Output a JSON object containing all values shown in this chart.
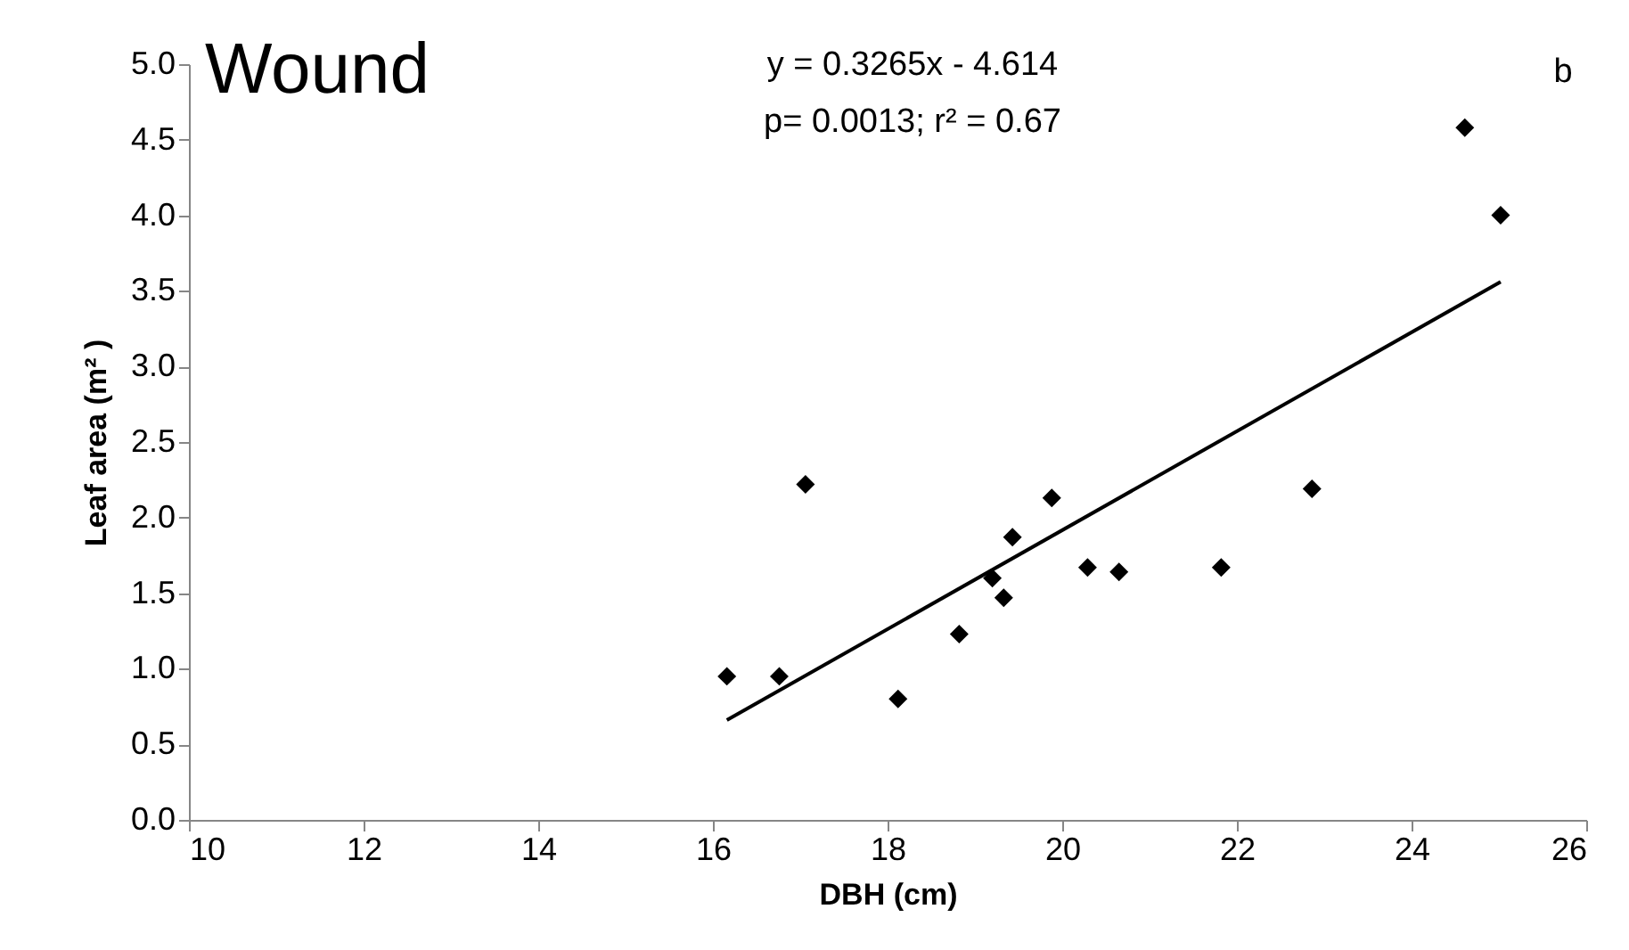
{
  "chart_data": {
    "type": "scatter",
    "xlabel": "DBH (cm)",
    "ylabel": "Leaf area (m² )",
    "annotations": [
      "Wound",
      "y = 0.3265x - 4.614",
      "p= 0.0013; r² = 0.67",
      "b"
    ],
    "xlim": [
      10,
      26
    ],
    "xticks": [
      10,
      12,
      14,
      16,
      18,
      20,
      22,
      24,
      26
    ],
    "ylim": [
      0,
      5
    ],
    "yticks": [
      {
        "value": 0,
        "label": "0.0"
      },
      {
        "value": 0.5,
        "label": "0.5"
      },
      {
        "value": 1,
        "label": "1.0"
      },
      {
        "value": 1.5,
        "label": "1.5"
      },
      {
        "value": 2,
        "label": "2.0"
      },
      {
        "value": 2.5,
        "label": "2.5"
      },
      {
        "value": 3,
        "label": "3.0"
      },
      {
        "value": 3.5,
        "label": "3.5"
      },
      {
        "value": 4,
        "label": "4.0"
      },
      {
        "value": 4.5,
        "label": "4.5"
      },
      {
        "value": 5,
        "label": "5.0"
      }
    ],
    "grid": false,
    "series": [
      {
        "type": "scatter",
        "color": "#000000",
        "marker": "diamond",
        "x": [
          16.16,
          16.76,
          17.06,
          18.12,
          18.82,
          19.2,
          19.33,
          19.43,
          19.88,
          20.29,
          20.65,
          21.82,
          22.86,
          24.61,
          25.02
        ],
        "values": [
          0.95,
          0.95,
          2.22,
          0.8,
          1.23,
          1.6,
          1.47,
          1.87,
          2.13,
          1.67,
          1.64,
          1.67,
          2.19,
          4.58,
          4.0
        ]
      },
      {
        "type": "line",
        "color": "#000000",
        "line_style": "solid",
        "marker": "none",
        "x": [
          16.16,
          25.02
        ],
        "values": [
          0.66,
          3.56
        ]
      }
    ]
  }
}
